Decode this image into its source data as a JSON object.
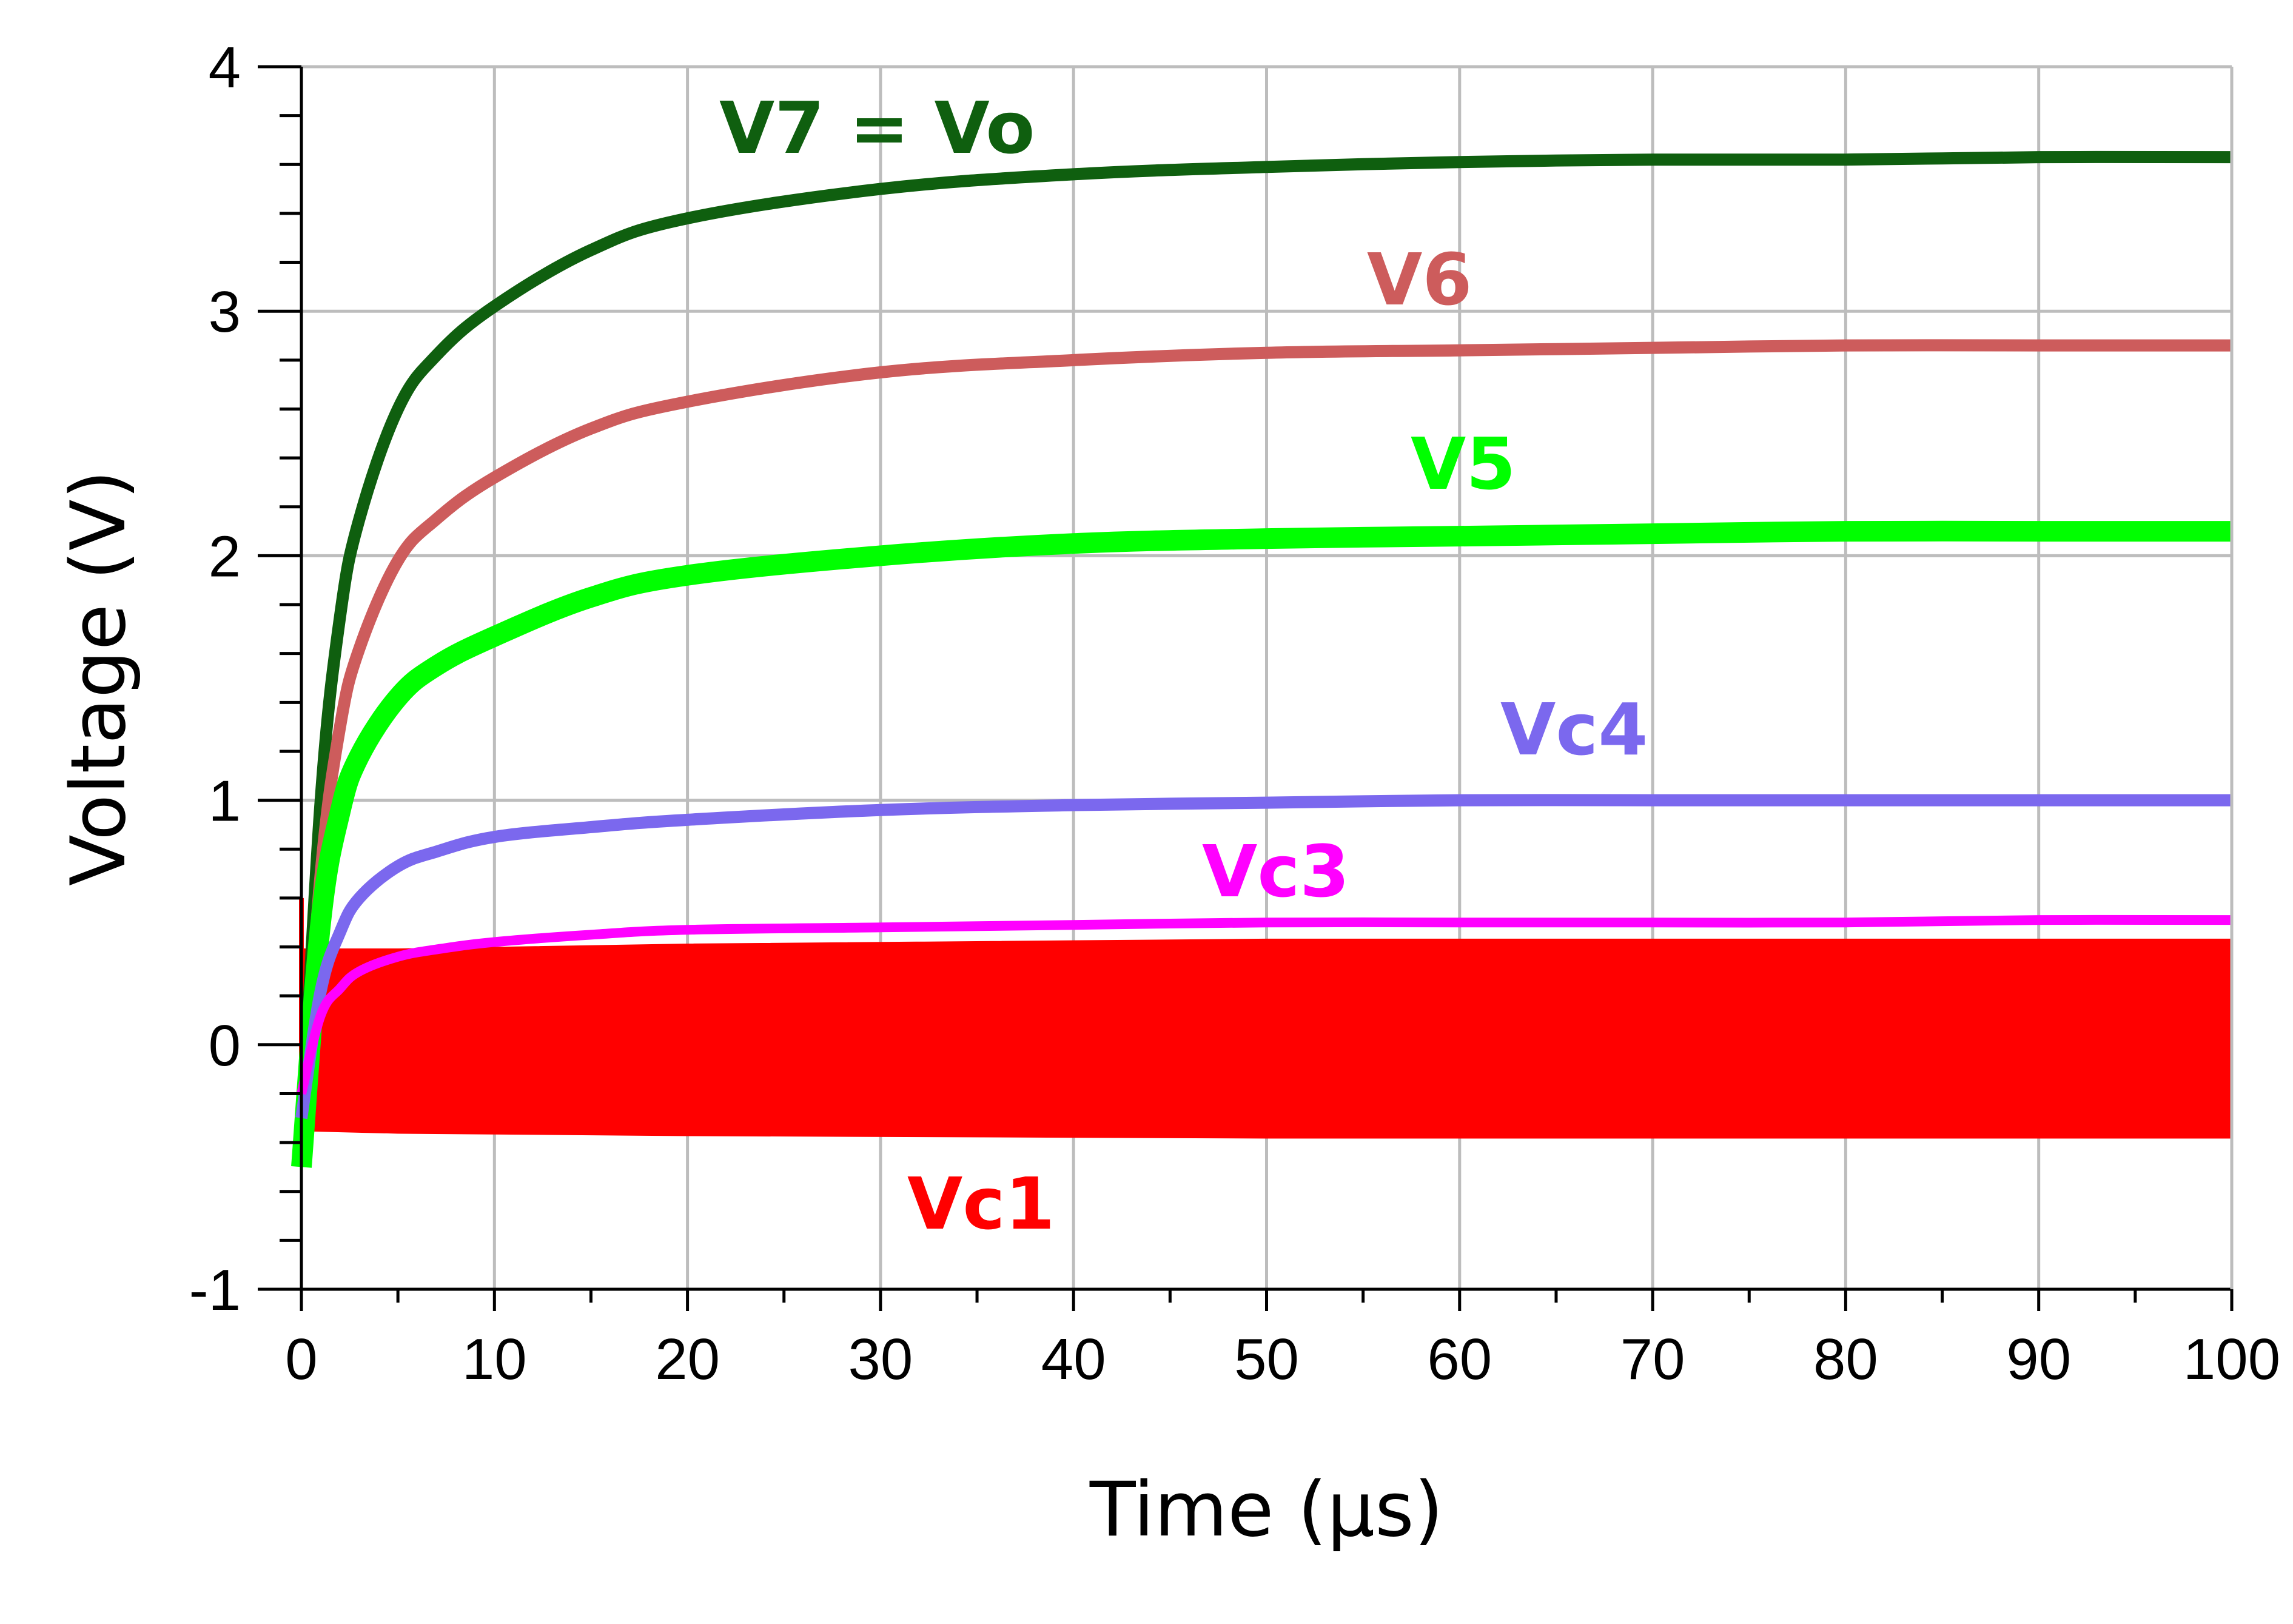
{
  "chart_data": {
    "type": "line",
    "title": "",
    "xlabel": "Time (µs)",
    "ylabel": "Voltage (V)",
    "xlim": [
      0,
      100
    ],
    "ylim": [
      -1,
      4
    ],
    "x_major_ticks": [
      0,
      10,
      20,
      30,
      40,
      50,
      60,
      70,
      80,
      90,
      100
    ],
    "x_tick_labels": [
      "0",
      "10",
      "20",
      "30",
      "40",
      "50",
      "60",
      "70",
      "80",
      "90",
      "100"
    ],
    "y_major_ticks": [
      -1,
      0,
      1,
      2,
      3,
      4
    ],
    "y_tick_labels": [
      "-1",
      "0",
      "1",
      "2",
      "3",
      "4"
    ],
    "x_minor_step": 5,
    "y_minor_step": 0.2,
    "grid": true,
    "legend": "none (series labelled inline)",
    "series": [
      {
        "name": "V7 = Vo",
        "color": "#0f5f0f",
        "kind": "line",
        "x": [
          0,
          1,
          2,
          3,
          5,
          7,
          10,
          15,
          20,
          30,
          40,
          50,
          60,
          70,
          80,
          90,
          100
        ],
        "y": [
          -0.4,
          1.0,
          1.75,
          2.15,
          2.6,
          2.82,
          3.02,
          3.25,
          3.38,
          3.5,
          3.56,
          3.59,
          3.61,
          3.62,
          3.62,
          3.63,
          3.63
        ]
      },
      {
        "name": "V6",
        "color": "#cd5c5c",
        "kind": "line",
        "x": [
          0,
          1,
          2,
          3,
          5,
          7,
          10,
          15,
          20,
          30,
          40,
          50,
          60,
          70,
          80,
          90,
          100
        ],
        "y": [
          -0.4,
          0.7,
          1.3,
          1.62,
          1.98,
          2.15,
          2.32,
          2.52,
          2.63,
          2.75,
          2.8,
          2.83,
          2.84,
          2.85,
          2.86,
          2.86,
          2.86
        ]
      },
      {
        "name": "V5",
        "color": "#00ff00",
        "kind": "line",
        "x": [
          0,
          1,
          2,
          3,
          5,
          7,
          10,
          15,
          20,
          30,
          40,
          50,
          60,
          70,
          80,
          90,
          100
        ],
        "y": [
          -0.5,
          0.5,
          0.95,
          1.18,
          1.42,
          1.55,
          1.67,
          1.83,
          1.92,
          2.0,
          2.05,
          2.07,
          2.08,
          2.09,
          2.1,
          2.1,
          2.1
        ]
      },
      {
        "name": "Vc4",
        "color": "#7b68ee",
        "kind": "line",
        "x": [
          0,
          1,
          2,
          3,
          5,
          7,
          10,
          15,
          20,
          30,
          40,
          50,
          60,
          70,
          80,
          90,
          100
        ],
        "y": [
          -0.3,
          0.22,
          0.46,
          0.6,
          0.73,
          0.79,
          0.85,
          0.89,
          0.92,
          0.96,
          0.98,
          0.99,
          1.0,
          1.0,
          1.0,
          1.0,
          1.0
        ]
      },
      {
        "name": "Vc3",
        "color": "#ff00ff",
        "kind": "line",
        "x": [
          0,
          1,
          2,
          3,
          5,
          7,
          10,
          15,
          20,
          30,
          40,
          50,
          60,
          70,
          80,
          90,
          100
        ],
        "y": [
          -0.2,
          0.12,
          0.23,
          0.3,
          0.36,
          0.39,
          0.42,
          0.45,
          0.47,
          0.48,
          0.49,
          0.5,
          0.5,
          0.5,
          0.5,
          0.51,
          0.51
        ]
      },
      {
        "name": "Vc1",
        "color": "#ff0000",
        "kind": "oscillation-envelope",
        "x": [
          0,
          5,
          20,
          50,
          100
        ],
        "y_upper": [
          0.39,
          0.39,
          0.41,
          0.43,
          0.43
        ],
        "y_lower": [
          -0.35,
          -0.36,
          -0.37,
          -0.38,
          -0.38
        ]
      }
    ]
  }
}
